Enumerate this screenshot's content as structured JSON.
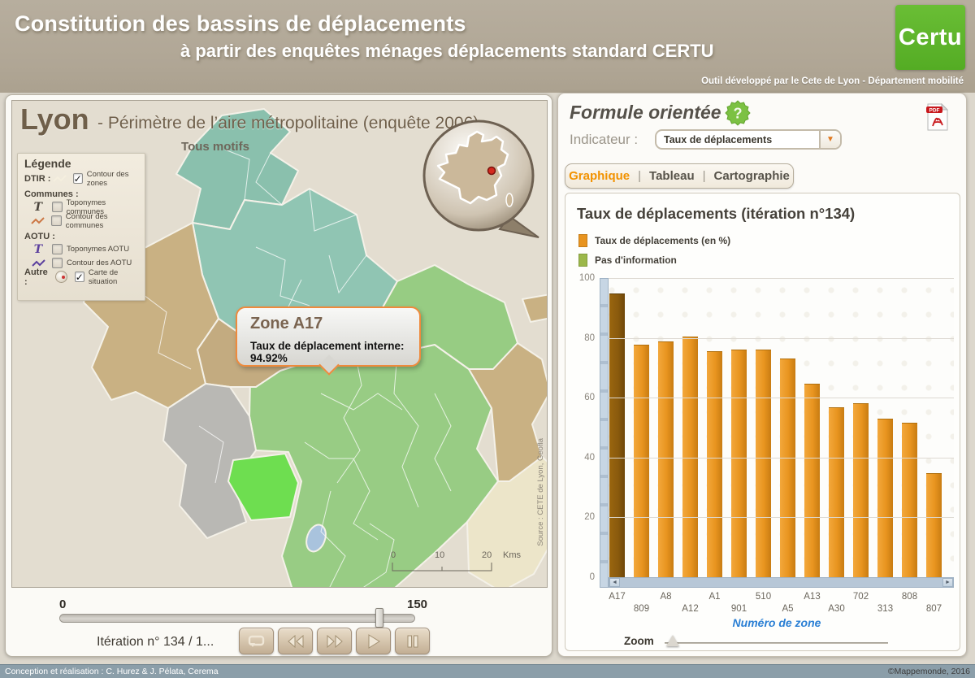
{
  "header": {
    "title_line1": "Constitution des bassins de déplacements",
    "title_line2": "à partir des enquêtes ménages déplacements standard CERTU",
    "logo": "Certu",
    "tool_credit": "Outil développé par le Cete de Lyon - Département mobilité"
  },
  "map_panel": {
    "city": "Lyon",
    "title_suffix": "- Périmètre de l’aire métropolitaine (enquête 2006)",
    "motif": "Tous motifs",
    "legend": {
      "title": "Légende",
      "rows": [
        {
          "type": "group-inline",
          "heading": "DTIR :",
          "icon": "zigzag",
          "icon_color": "#f5efdf",
          "checked": true,
          "label": "Contour des zones"
        },
        {
          "type": "heading",
          "text": "Communes :"
        },
        {
          "type": "item",
          "icon": "T",
          "icon_color": "#4a443c",
          "checked": false,
          "label": "Toponymes communes"
        },
        {
          "type": "item",
          "icon": "zigzag",
          "icon_color": "#cc7744",
          "checked": false,
          "label": "Contour des communes"
        },
        {
          "type": "heading",
          "text": "AOTU :"
        },
        {
          "type": "item",
          "icon": "T",
          "icon_color": "#5b3f9e",
          "checked": false,
          "label": "Toponymes AOTU"
        },
        {
          "type": "item",
          "icon": "zigzag",
          "icon_color": "#5b3f9e",
          "checked": false,
          "label": "Contour des AOTU"
        },
        {
          "type": "group-inline",
          "heading": "Autre :",
          "icon": "globe",
          "icon_color": "",
          "checked": true,
          "label": "Carte de situation"
        }
      ]
    },
    "tooltip": {
      "title": "Zone A17",
      "body": "Taux de déplacement interne: 94.92%"
    },
    "scale": {
      "ticks": [
        "0",
        "10",
        "20"
      ],
      "unit": "Kms"
    },
    "source": "Source : CETE de Lyon, Geofla"
  },
  "timeline": {
    "start": "0",
    "end": "150",
    "iteration": "Itération n° 134 / 1...",
    "buttons": [
      "loop",
      "rewind",
      "fast-forward",
      "play",
      "pause"
    ]
  },
  "right_panel": {
    "title": "Formule orientée",
    "pdf_label": "PDF",
    "indicator_label": "Indicateur :",
    "indicator_value": "Taux de déplacements",
    "tab_separator": "|",
    "tabs": [
      {
        "label": "Graphique",
        "active": true
      },
      {
        "label": "Tableau",
        "active": false
      },
      {
        "label": "Cartographie",
        "active": false
      }
    ]
  },
  "chart_data": {
    "type": "bar",
    "title": "Taux de déplacements (itération n°134)",
    "legend": [
      {
        "label": "Taux de déplacements (en %)",
        "color": "#e8941f"
      },
      {
        "label": "Pas d'information",
        "color": "#9cb84a"
      }
    ],
    "categories": [
      "A17",
      "809",
      "A8",
      "A12",
      "A1",
      "901",
      "510",
      "A5",
      "A13",
      "A30",
      "702",
      "313",
      "808",
      "807"
    ],
    "values": [
      94.92,
      77.7,
      78.8,
      80.4,
      75.5,
      76.1,
      76.1,
      73.1,
      64.7,
      56.8,
      58.2,
      53.0,
      51.6,
      34.8
    ],
    "highlighted_index": 0,
    "highlighted_zone": "A17",
    "bar_color": "#e8941f",
    "highlight_color": "#8a5a0d",
    "xlabel": "Numéro de zone",
    "ylabel": "",
    "ylim": [
      0,
      100
    ],
    "yticks": [
      0,
      20,
      40,
      60,
      80,
      100
    ],
    "grid": true,
    "legend_position": "top-left",
    "zoom_label": "Zoom"
  },
  "colors": {
    "accent_orange": "#f29200",
    "certu_green": "#58b22b",
    "no_info_green": "#9cb84a",
    "footer_bar": "#8b9ea9",
    "axis_blue_label": "#2a7fd4"
  },
  "footer": {
    "left": "Conception et réalisation : C. Hurez & J. Pélata, Cerema",
    "right": "©Mappemonde, 2016"
  }
}
